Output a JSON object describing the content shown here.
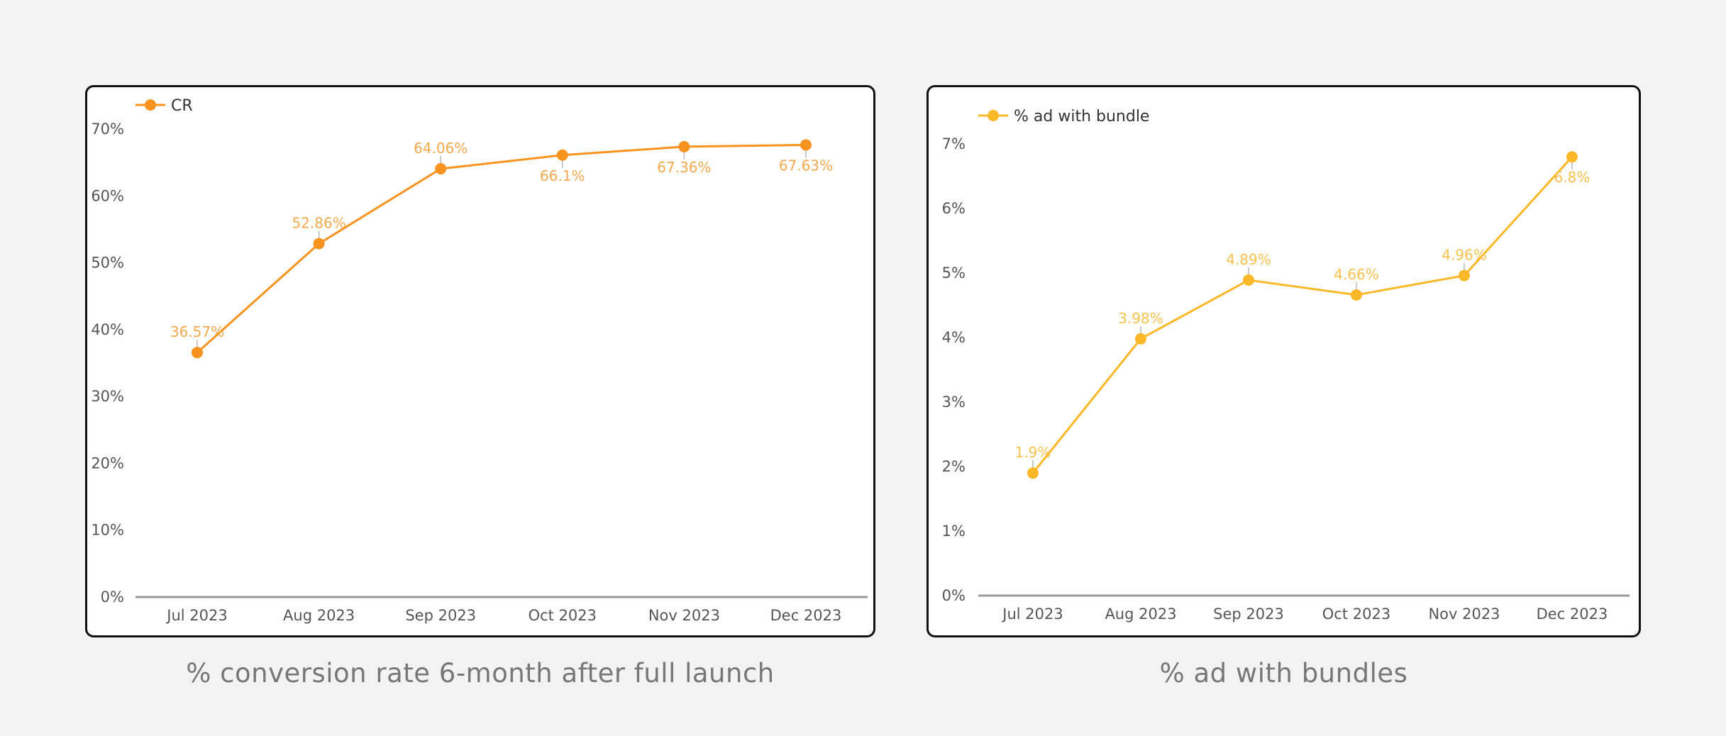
{
  "charts": [
    {
      "chart_data": {
        "type": "line",
        "caption": "% conversion rate 6-month after full launch",
        "categories": [
          "Jul 2023",
          "Aug 2023",
          "Sep 2023",
          "Oct 2023",
          "Nov 2023",
          "Dec 2023"
        ],
        "series": [
          {
            "name": "CR",
            "values": [
              36.57,
              52.86,
              64.06,
              66.1,
              67.36,
              67.63
            ],
            "labels": [
              "36.57%",
              "52.86%",
              "64.06%",
              "66.1%",
              "67.36%",
              "67.63%"
            ],
            "color": "#F7931E",
            "label_color": "#F5A94E"
          }
        ],
        "yticks": [
          "0%",
          "10%",
          "20%",
          "30%",
          "40%",
          "50%",
          "60%",
          "70%"
        ],
        "ylim": [
          0,
          70
        ],
        "legend": "top-left",
        "grid": false
      }
    },
    {
      "chart_data": {
        "type": "line",
        "caption": "% ad with bundles",
        "categories": [
          "Jul 2023",
          "Aug 2023",
          "Sep 2023",
          "Oct 2023",
          "Nov 2023",
          "Dec 2023"
        ],
        "series": [
          {
            "name": "% ad with bundle",
            "values": [
              1.9,
              3.98,
              4.89,
              4.66,
              4.96,
              6.8
            ],
            "labels": [
              "1.9%",
              "3.98%",
              "4.89%",
              "4.66%",
              "4.96%",
              "6.8%"
            ],
            "color": "#FBB828",
            "label_color": "#F9C24E"
          }
        ],
        "yticks": [
          "0%",
          "1%",
          "2%",
          "3%",
          "4%",
          "5%",
          "6%",
          "7%"
        ],
        "ylim": [
          0,
          7
        ],
        "legend": "top-left",
        "grid": false
      }
    }
  ]
}
